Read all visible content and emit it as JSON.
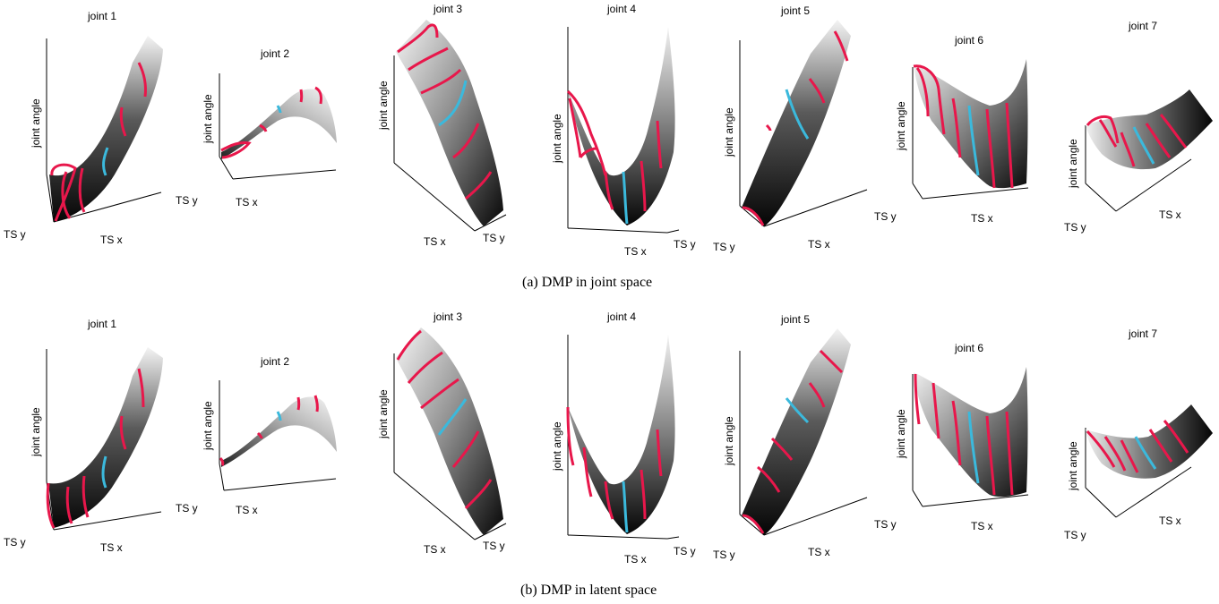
{
  "figure": {
    "axis_labels": {
      "vertical": "joint angle",
      "x": "TS x",
      "y": "TS y"
    },
    "colors": {
      "demonstration": "#e8174b",
      "generated": "#3bb9dc",
      "surface_dark": "#0a0a0a",
      "surface_light": "#f2f2f2"
    },
    "rows": [
      {
        "caption": "(a) DMP in joint space",
        "panels": [
          {
            "title": "joint 1"
          },
          {
            "title": "joint 2"
          },
          {
            "title": "joint 3"
          },
          {
            "title": "joint 4"
          },
          {
            "title": "joint 5"
          },
          {
            "title": "joint 6"
          },
          {
            "title": "joint 7"
          }
        ]
      },
      {
        "caption": "(b) DMP in latent space",
        "panels": [
          {
            "title": "joint 1"
          },
          {
            "title": "joint 2"
          },
          {
            "title": "joint 3"
          },
          {
            "title": "joint 4"
          },
          {
            "title": "joint 5"
          },
          {
            "title": "joint 6"
          },
          {
            "title": "joint 7"
          }
        ]
      }
    ]
  }
}
